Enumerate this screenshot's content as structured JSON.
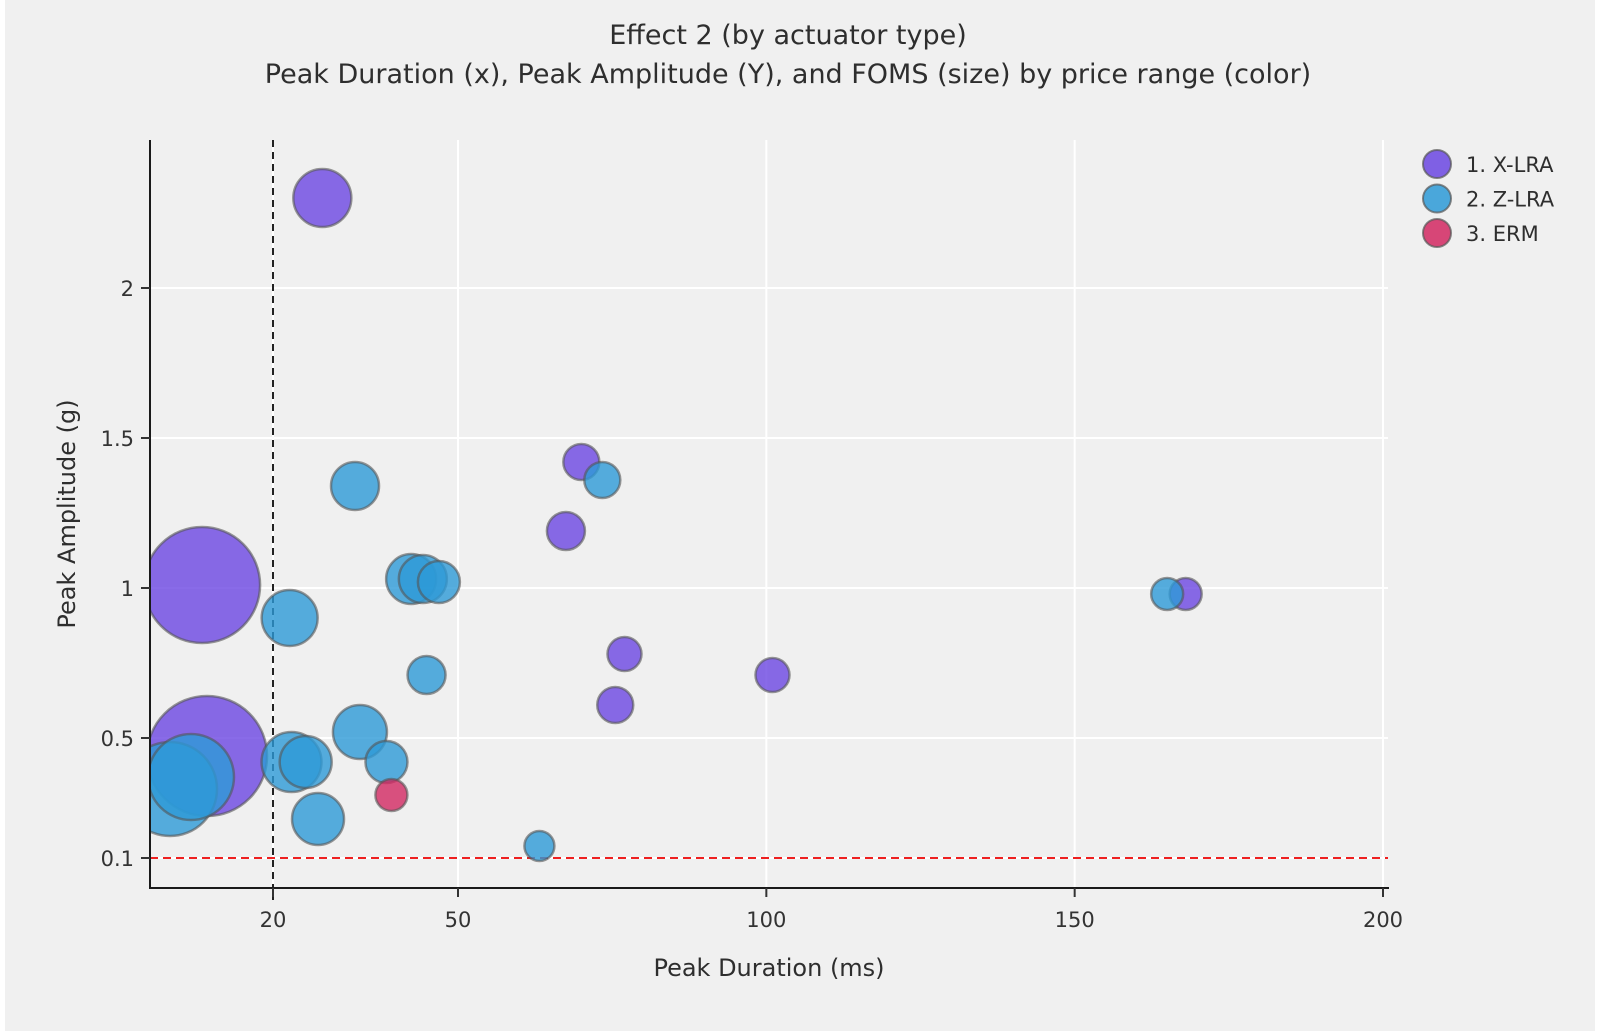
{
  "figure": {
    "title": "Effect 2 (by actuator type)",
    "subtitle": "Peak Duration (x), Peak Amplitude (Y), and FOMS (size) by price range (color)",
    "background_color": "#f0f0f0"
  },
  "chart_data": {
    "type": "scatter",
    "variant": "bubble",
    "title": "Effect 2 (by actuator type)",
    "subtitle": "Peak Duration (x), Peak Amplitude (Y), and FOMS (size) by price range (color)",
    "xlabel": "Peak Duration (ms)",
    "ylabel": "Peak Amplitude (g)",
    "xlim": [
      0,
      200
    ],
    "ylim": [
      0,
      2.49
    ],
    "xticks": [
      20,
      50,
      100,
      150,
      200
    ],
    "xtick_labels": [
      "20",
      "50",
      "100",
      "150",
      "200"
    ],
    "yticks": [
      0.1,
      0.5,
      1,
      1.5,
      2
    ],
    "ytick_labels": [
      "0.1",
      "0.5",
      "1",
      "1.5",
      "2"
    ],
    "grid": true,
    "gridline_color": "#ffffff",
    "legend_position": "upper right",
    "size_encodes": "FOMS",
    "color_encodes": "price range / actuator type",
    "reference_lines": [
      {
        "axis": "x",
        "value": 20,
        "style": "dashed",
        "color": "#222222"
      },
      {
        "axis": "y",
        "value": 0.1,
        "style": "dashed",
        "color": "#ee2020"
      }
    ],
    "series": [
      {
        "name": "1. X-LRA",
        "color": "#6b46e2",
        "points": [
          {
            "x": 28,
            "y": 2.3,
            "r": 29
          },
          {
            "x": 8.5,
            "y": 1.01,
            "r": 58
          },
          {
            "x": 9.3,
            "y": 0.44,
            "r": 60
          },
          {
            "x": 70,
            "y": 1.42,
            "r": 18
          },
          {
            "x": 67.5,
            "y": 1.19,
            "r": 19
          },
          {
            "x": 77,
            "y": 0.78,
            "r": 17
          },
          {
            "x": 75.5,
            "y": 0.61,
            "r": 18
          },
          {
            "x": 101,
            "y": 0.71,
            "r": 17
          },
          {
            "x": 168,
            "y": 0.98,
            "r": 16
          }
        ]
      },
      {
        "name": "2. Z-LRA",
        "color": "#2d9ad7",
        "points": [
          {
            "x": 3.3,
            "y": 0.33,
            "r": 47
          },
          {
            "x": 6.7,
            "y": 0.37,
            "r": 43
          },
          {
            "x": 22.7,
            "y": 0.9,
            "r": 28
          },
          {
            "x": 23.0,
            "y": 0.42,
            "r": 30
          },
          {
            "x": 25.3,
            "y": 0.42,
            "r": 26
          },
          {
            "x": 27.3,
            "y": 0.23,
            "r": 26
          },
          {
            "x": 33.3,
            "y": 1.34,
            "r": 24
          },
          {
            "x": 34.1,
            "y": 0.52,
            "r": 27
          },
          {
            "x": 38.4,
            "y": 0.42,
            "r": 21
          },
          {
            "x": 42.4,
            "y": 1.03,
            "r": 25
          },
          {
            "x": 44.3,
            "y": 1.03,
            "r": 24
          },
          {
            "x": 46.9,
            "y": 1.02,
            "r": 21
          },
          {
            "x": 44.9,
            "y": 0.71,
            "r": 19
          },
          {
            "x": 63.2,
            "y": 0.14,
            "r": 15
          },
          {
            "x": 73.4,
            "y": 1.36,
            "r": 18
          },
          {
            "x": 165,
            "y": 0.98,
            "r": 16
          }
        ]
      },
      {
        "name": "3. ERM",
        "color": "#d22862",
        "points": [
          {
            "x": 39.2,
            "y": 0.31,
            "r": 16
          }
        ]
      }
    ]
  }
}
